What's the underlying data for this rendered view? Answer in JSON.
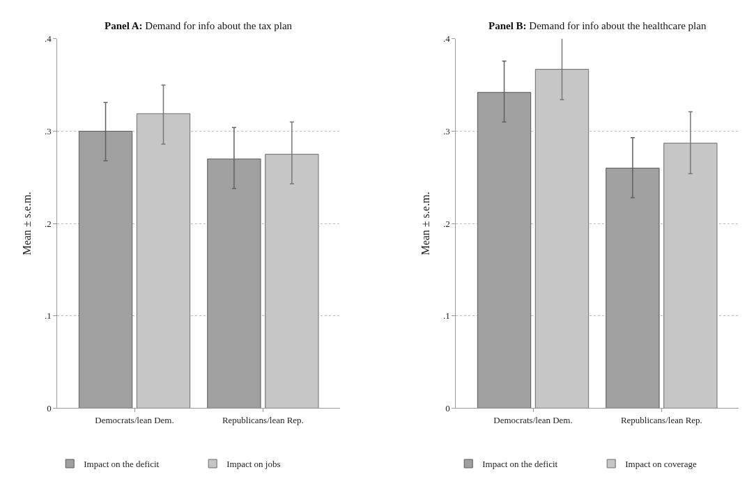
{
  "chart_data": [
    {
      "type": "bar",
      "title": "Panel A: Demand for info about the tax plan",
      "ylabel": "Mean ± s.e.m.",
      "categories": [
        "Democrats/lean Dem.",
        "Republicans/lean Rep."
      ],
      "series": [
        {
          "name": "Impact on the deficit",
          "color": "#a0a0a0",
          "values": [
            0.3,
            0.27
          ],
          "errors": [
            [
              0.268,
              0.331
            ],
            [
              0.238,
              0.304
            ]
          ]
        },
        {
          "name": "Impact on jobs",
          "color": "#c6c6c6",
          "values": [
            0.319,
            0.275
          ],
          "errors": [
            [
              0.286,
              0.35
            ],
            [
              0.243,
              0.31
            ]
          ]
        }
      ],
      "ylim": [
        0,
        0.4
      ],
      "yticks": [
        0,
        {
          "value": 0.1,
          "label": ".1"
        },
        {
          "value": 0.2,
          "label": ".2"
        },
        {
          "value": 0.3,
          "label": ".3"
        },
        {
          "value": 0.4,
          "label": ".4"
        }
      ],
      "grid": "y",
      "legend": "bottom"
    },
    {
      "type": "bar",
      "title": "Panel B: Demand for info about the healthcare plan",
      "ylabel": "Mean ± s.e.m.",
      "categories": [
        "Democrats/lean Dem.",
        "Republicans/lean Rep."
      ],
      "series": [
        {
          "name": "Impact on the deficit",
          "color": "#a0a0a0",
          "values": [
            0.342,
            0.26
          ],
          "errors": [
            [
              0.31,
              0.376
            ],
            [
              0.228,
              0.293
            ]
          ]
        },
        {
          "name": "Impact on coverage",
          "color": "#c6c6c6",
          "values": [
            0.367,
            0.287
          ],
          "errors": [
            [
              0.334,
              0.401
            ],
            [
              0.254,
              0.321
            ]
          ]
        }
      ],
      "ylim": [
        0,
        0.4
      ],
      "yticks": [
        0,
        {
          "value": 0.1,
          "label": ".1"
        },
        {
          "value": 0.2,
          "label": ".2"
        },
        {
          "value": 0.3,
          "label": ".3"
        },
        {
          "value": 0.4,
          "label": ".4"
        }
      ],
      "grid": "y",
      "legend": "bottom"
    }
  ]
}
